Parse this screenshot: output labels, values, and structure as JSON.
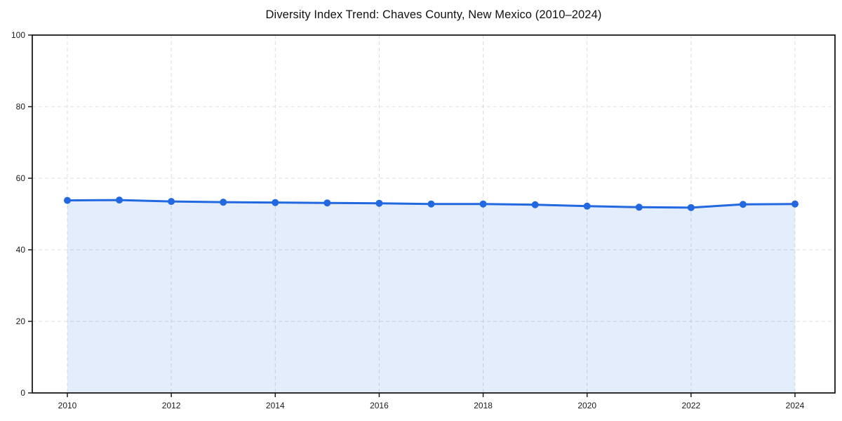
{
  "page": {
    "background_color": "#ffffff"
  },
  "chart_data": {
    "type": "area",
    "title": "Diversity Index Trend: Chaves County, New Mexico (2010–2024)",
    "x": [
      2010,
      2011,
      2012,
      2013,
      2014,
      2015,
      2016,
      2017,
      2018,
      2019,
      2020,
      2021,
      2022,
      2023,
      2024
    ],
    "values": [
      53.8,
      53.9,
      53.5,
      53.3,
      53.2,
      53.1,
      53.0,
      52.8,
      52.8,
      52.6,
      52.2,
      51.9,
      51.8,
      52.7,
      52.8
    ],
    "series_name": "Diversity Index",
    "xlabel": "",
    "ylabel": "",
    "ylim": [
      0,
      100
    ],
    "yticks": [
      0,
      20,
      40,
      60,
      80,
      100
    ],
    "xticks": [
      2010,
      2012,
      2014,
      2016,
      2018,
      2020,
      2022,
      2024
    ],
    "grid": "on",
    "grid_style": "dashed",
    "legend": "none",
    "line_color": "#2268e0",
    "marker_color": "#2268e0",
    "fill_color": "rgba(34, 104, 224, 0.12)",
    "axis_color": "#1a1a1a",
    "grid_color": "#dcdcdc",
    "tick_label_color": "#1a1a1a"
  }
}
